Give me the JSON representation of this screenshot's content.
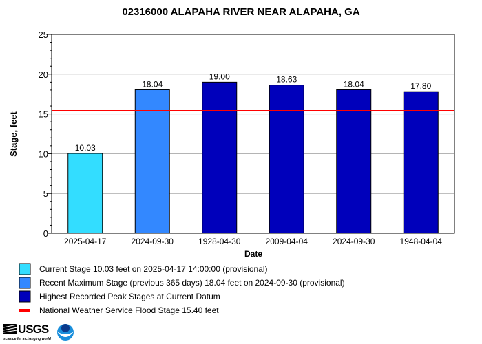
{
  "chart_data": {
    "type": "bar",
    "title": "02316000 ALAPAHA RIVER NEAR ALAPAHA, GA",
    "xlabel": "Date",
    "ylabel": "Stage, feet",
    "ylim": [
      0,
      25
    ],
    "yticks": [
      0,
      5,
      10,
      15,
      20,
      25
    ],
    "grid": true,
    "categories": [
      "2025-04-17",
      "2024-09-30",
      "1928-04-30",
      "2009-04-04",
      "2024-09-30",
      "1948-04-04"
    ],
    "values": [
      10.03,
      18.04,
      19.0,
      18.63,
      18.04,
      17.8
    ],
    "value_labels": [
      "10.03",
      "18.04",
      "19.00",
      "18.63",
      "18.04",
      "17.80"
    ],
    "bar_types": [
      "current",
      "recent",
      "peak",
      "peak",
      "peak",
      "peak"
    ],
    "flood_stage": 15.4,
    "colors": {
      "current": "#33ddff",
      "recent": "#3388ff",
      "peak": "#0000bb",
      "flood": "#ff0000"
    },
    "legend": [
      {
        "key": "current",
        "label": "Current Stage 10.03 feet on 2025-04-17 14:00:00 (provisional)"
      },
      {
        "key": "recent",
        "label": "Recent Maximum Stage (previous 365 days) 18.04 feet on 2024-09-30 (provisional)"
      },
      {
        "key": "peak",
        "label": "Highest Recorded Peak Stages at Current Datum"
      },
      {
        "key": "flood",
        "label": "National Weather Service Flood Stage 15.40 feet"
      }
    ],
    "legend_placement": "bottom"
  },
  "logos": {
    "usgs": "USGS",
    "usgs_tagline": "science for a changing world",
    "noaa": "NOAA"
  }
}
